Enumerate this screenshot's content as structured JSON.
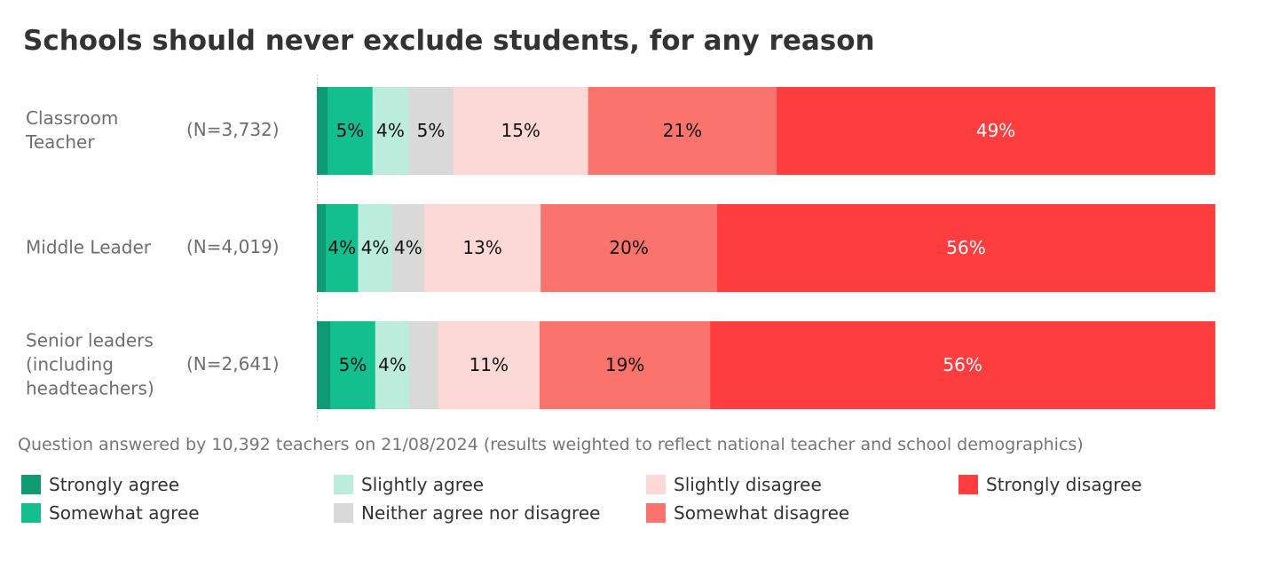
{
  "chart_data": {
    "type": "bar",
    "orientation": "horizontal",
    "stacked": true,
    "title": "Schools should never exclude students, for any reason",
    "categories": [
      {
        "label_lines": [
          "Classroom",
          "Teacher"
        ],
        "n": "(N=3,732)"
      },
      {
        "label_lines": [
          "Middle Leader"
        ],
        "n": "(N=4,019)"
      },
      {
        "label_lines": [
          "Senior leaders",
          "(including",
          "headteachers)"
        ],
        "n": "(N=2,641)"
      }
    ],
    "series": [
      {
        "name": "Strongly agree",
        "color": "#0f9a74",
        "values": [
          1.2,
          1.0,
          1.5
        ],
        "labels": [
          "",
          "",
          ""
        ]
      },
      {
        "name": "Somewhat agree",
        "color": "#14bf8f",
        "values": [
          5,
          3.6,
          5
        ],
        "labels": [
          "5%",
          "4%",
          "5%"
        ]
      },
      {
        "name": "Slightly agree",
        "color": "#bcecdc",
        "values": [
          4,
          3.8,
          3.8
        ],
        "labels": [
          "4%",
          "4%",
          "4%"
        ]
      },
      {
        "name": "Neither agree nor disagree",
        "color": "#d9d9d9",
        "values": [
          5,
          3.6,
          3.2
        ],
        "labels": [
          "5%",
          "4%",
          ""
        ]
      },
      {
        "name": "Slightly disagree",
        "color": "#fcd8d6",
        "values": [
          15,
          13,
          11.3
        ],
        "labels": [
          "15%",
          "13%",
          "11%"
        ]
      },
      {
        "name": "Somewhat disagree",
        "color": "#fa736c",
        "values": [
          21,
          19.7,
          19
        ],
        "labels": [
          "21%",
          "20%",
          "19%"
        ]
      },
      {
        "name": "Strongly disagree",
        "color": "#fd3d3e",
        "values": [
          48.8,
          55.6,
          56.2
        ],
        "labels": [
          "49%",
          "56%",
          "56%"
        ]
      }
    ],
    "xlim": [
      0,
      100
    ],
    "legend_position": "bottom",
    "grid": false
  },
  "footnote": "Question answered by 10,392 teachers on 21/08/2024 (results weighted to reflect national teacher and school demographics)"
}
